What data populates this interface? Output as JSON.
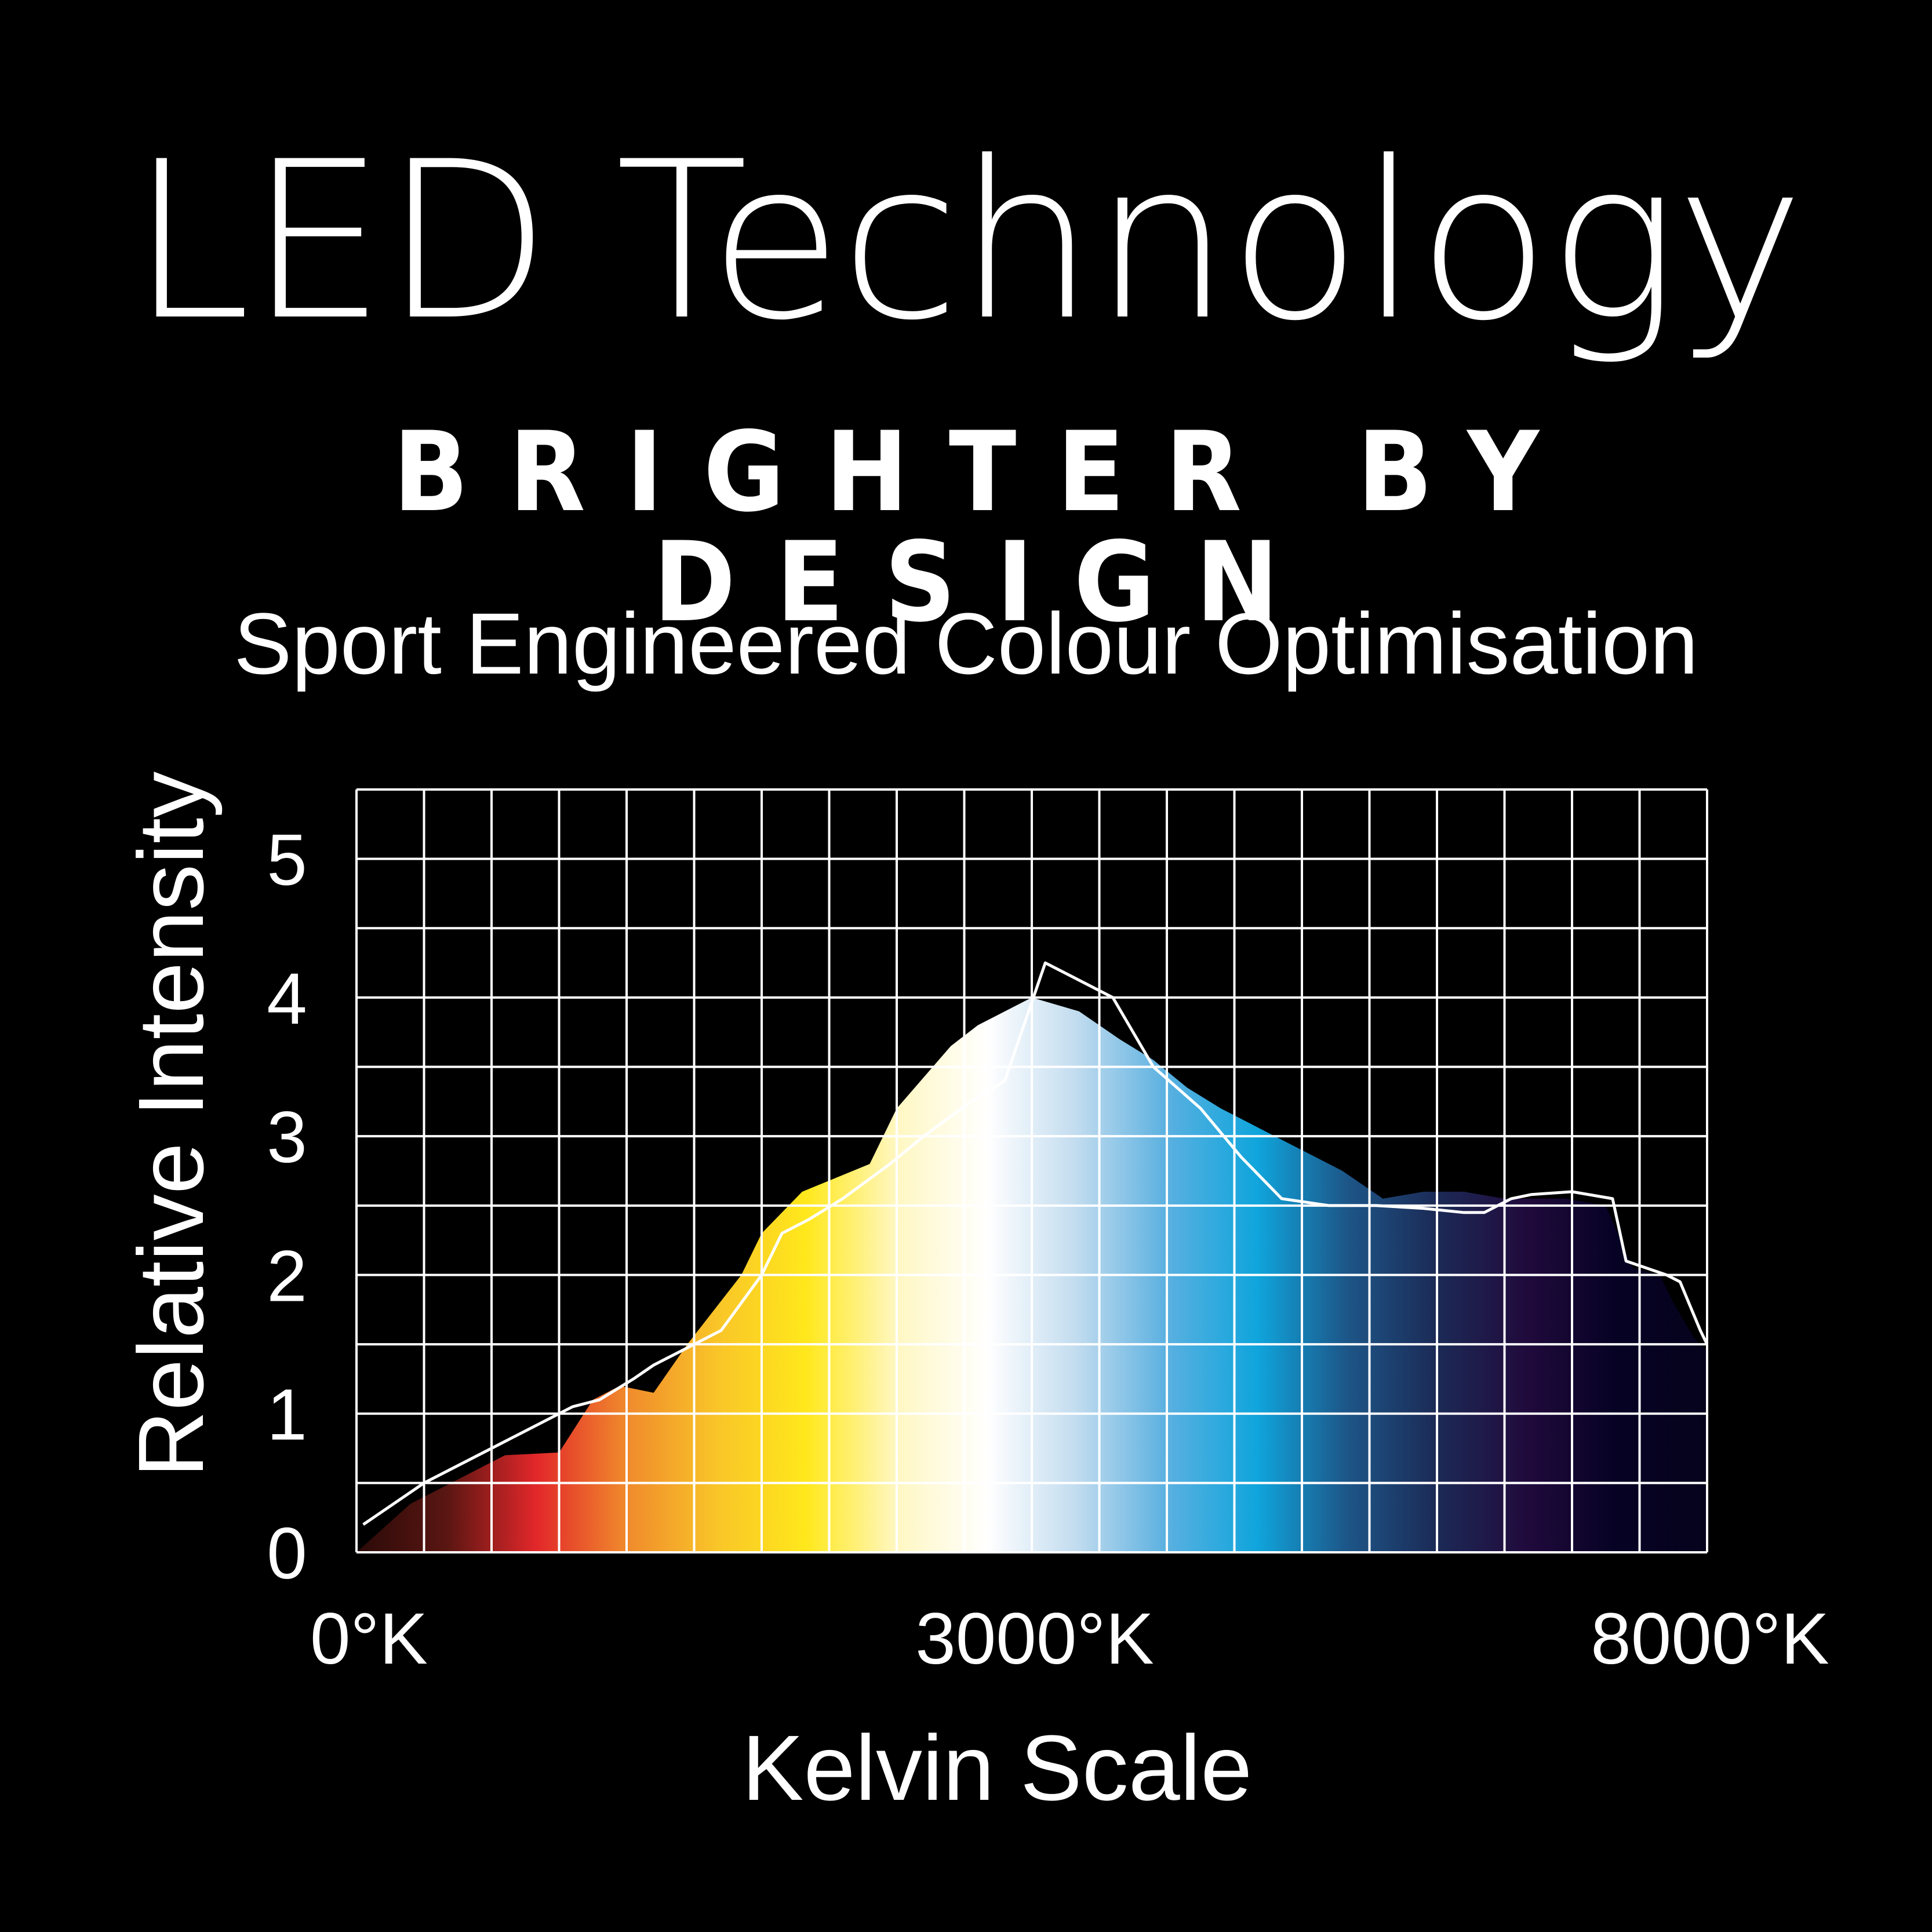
{
  "header": {
    "title": "LED Technology",
    "tagline": "BRIGHTER BY DESIGN",
    "subtitle": "Sport Engineered Colour Optimisation"
  },
  "chart_data": {
    "type": "area",
    "xlabel": "Kelvin Scale",
    "ylabel": "Relative Intensity",
    "x_tick_labels": [
      "0°K",
      "3000°K",
      "8000°K"
    ],
    "y_ticks": [
      0,
      1,
      2,
      3,
      4,
      5
    ],
    "ylim": [
      0,
      5.5
    ],
    "grid": true,
    "colors": {
      "background": "#000000",
      "grid": "#ffffff",
      "overlay_line": "#ffffff",
      "spectrum": [
        "#2a0a08",
        "#5a1612",
        "#e2272a",
        "#f08a2c",
        "#f9c528",
        "#ffe81c",
        "#fff7c2",
        "#ffffff",
        "#c2dcef",
        "#5ab0e0",
        "#0fa5dc",
        "#1d5688",
        "#1c2a56",
        "#200a3c",
        "#060224",
        "#05031c"
      ]
    },
    "series": [
      {
        "style": "gradient-fill",
        "x": [
          0,
          0.04,
          0.11,
          0.15,
          0.175,
          0.195,
          0.22,
          0.245,
          0.285,
          0.3,
          0.33,
          0.38,
          0.4,
          0.44,
          0.46,
          0.5,
          0.535,
          0.565,
          0.59,
          0.615,
          0.64,
          0.67,
          0.7,
          0.73,
          0.76,
          0.79,
          0.82,
          0.85,
          0.87,
          0.895,
          0.925,
          0.945,
          0.965,
          0.975,
          0.99,
          1.0
        ],
        "y": [
          0,
          0.35,
          0.7,
          0.72,
          1.1,
          1.2,
          1.15,
          1.5,
          2.0,
          2.3,
          2.6,
          2.8,
          3.2,
          3.65,
          3.8,
          4.0,
          3.9,
          3.7,
          3.55,
          3.35,
          3.2,
          3.05,
          2.9,
          2.75,
          2.55,
          2.6,
          2.6,
          2.55,
          2.55,
          2.55,
          2.5,
          2.05,
          2.0,
          1.8,
          1.55,
          1.45
        ]
      },
      {
        "style": "line",
        "x": [
          0.005,
          0.05,
          0.11,
          0.16,
          0.18,
          0.205,
          0.22,
          0.24,
          0.27,
          0.3,
          0.315,
          0.335,
          0.36,
          0.395,
          0.42,
          0.455,
          0.48,
          0.51,
          0.53,
          0.56,
          0.59,
          0.625,
          0.655,
          0.685,
          0.72,
          0.755,
          0.79,
          0.82,
          0.835,
          0.855,
          0.87,
          0.9,
          0.93,
          0.94,
          0.97,
          0.98,
          0.995,
          1.0
        ],
        "y": [
          0.2,
          0.5,
          0.8,
          1.05,
          1.1,
          1.25,
          1.35,
          1.45,
          1.6,
          2.0,
          2.3,
          2.4,
          2.55,
          2.8,
          3.0,
          3.25,
          3.4,
          4.25,
          4.15,
          4.0,
          3.5,
          3.2,
          2.85,
          2.55,
          2.5,
          2.5,
          2.48,
          2.45,
          2.45,
          2.55,
          2.58,
          2.6,
          2.55,
          2.1,
          2.0,
          1.95,
          1.6,
          1.5
        ]
      }
    ]
  }
}
